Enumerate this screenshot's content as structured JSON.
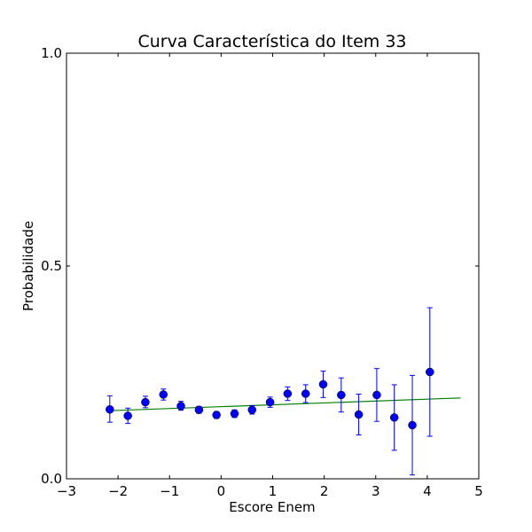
{
  "chart_data": {
    "type": "scatter",
    "title": "Curva Característica do Item 33",
    "xlabel": "Escore Enem",
    "ylabel": "Probabilidade",
    "xlim": [
      -3,
      5
    ],
    "ylim": [
      0.0,
      1.0
    ],
    "xticks": [
      -3,
      -2,
      -1,
      0,
      1,
      2,
      3,
      4,
      5
    ],
    "xtick_labels": [
      "−3",
      "−2",
      "−1",
      "0",
      "1",
      "2",
      "3",
      "4",
      "5"
    ],
    "yticks": [
      0.0,
      0.5,
      1.0
    ],
    "ytick_labels": [
      "0.0",
      "0.5",
      "1.0"
    ],
    "grid": false,
    "series": [
      {
        "kind": "points-with-errorbars",
        "color": "#0000ff",
        "points": [
          {
            "x": -2.16,
            "y": 0.163,
            "err_low": 0.03,
            "err_high": 0.032
          },
          {
            "x": -1.81,
            "y": 0.148,
            "err_low": 0.018,
            "err_high": 0.018
          },
          {
            "x": -1.47,
            "y": 0.18,
            "err_low": 0.013,
            "err_high": 0.014
          },
          {
            "x": -1.12,
            "y": 0.198,
            "err_low": 0.013,
            "err_high": 0.013
          },
          {
            "x": -0.78,
            "y": 0.171,
            "err_low": 0.01,
            "err_high": 0.011
          },
          {
            "x": -0.43,
            "y": 0.162,
            "err_low": 0.008,
            "err_high": 0.008
          },
          {
            "x": -0.09,
            "y": 0.15,
            "err_low": 0.008,
            "err_high": 0.008
          },
          {
            "x": 0.26,
            "y": 0.153,
            "err_low": 0.009,
            "err_high": 0.009
          },
          {
            "x": 0.6,
            "y": 0.162,
            "err_low": 0.01,
            "err_high": 0.01
          },
          {
            "x": 0.95,
            "y": 0.18,
            "err_low": 0.012,
            "err_high": 0.012
          },
          {
            "x": 1.29,
            "y": 0.2,
            "err_low": 0.016,
            "err_high": 0.016
          },
          {
            "x": 1.64,
            "y": 0.2,
            "err_low": 0.021,
            "err_high": 0.021
          },
          {
            "x": 1.98,
            "y": 0.222,
            "err_low": 0.031,
            "err_high": 0.031
          },
          {
            "x": 2.33,
            "y": 0.197,
            "err_low": 0.04,
            "err_high": 0.04
          },
          {
            "x": 2.67,
            "y": 0.151,
            "err_low": 0.048,
            "err_high": 0.048
          },
          {
            "x": 3.02,
            "y": 0.197,
            "err_low": 0.062,
            "err_high": 0.062
          },
          {
            "x": 3.36,
            "y": 0.144,
            "err_low": 0.077,
            "err_high": 0.077
          },
          {
            "x": 3.71,
            "y": 0.126,
            "err_low": 0.117,
            "err_high": 0.117
          },
          {
            "x": 4.05,
            "y": 0.251,
            "err_low": 0.151,
            "err_high": 0.151
          }
        ]
      },
      {
        "kind": "line",
        "color": "#008000",
        "x": [
          -2.16,
          4.65
        ],
        "y": [
          0.16,
          0.19
        ]
      }
    ]
  }
}
